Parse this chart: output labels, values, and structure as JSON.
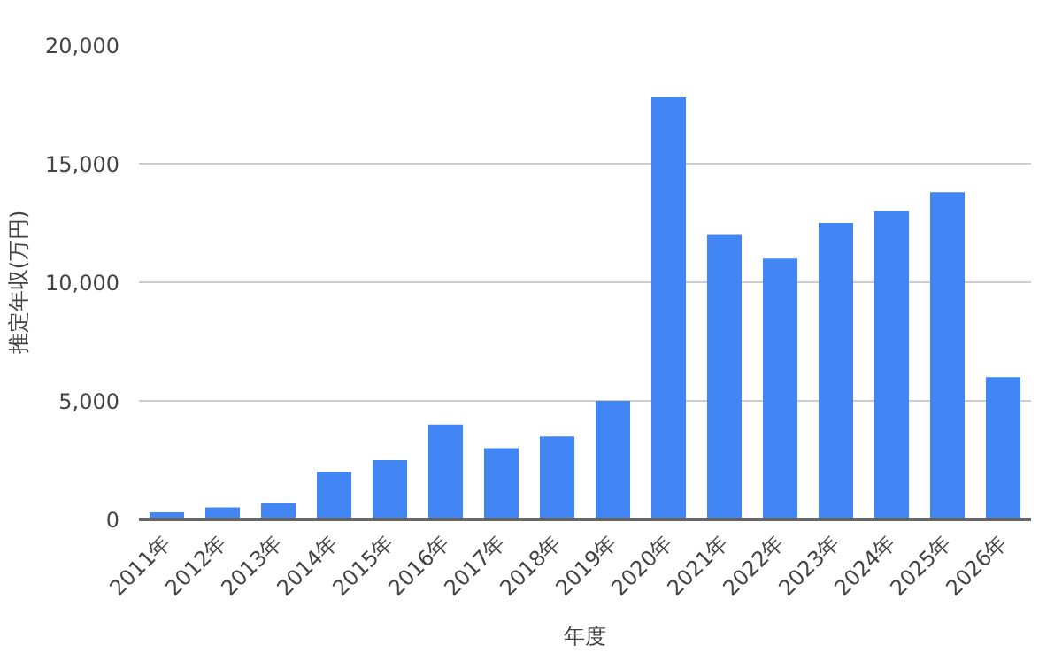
{
  "chart_data": {
    "type": "bar",
    "xlabel": "年度",
    "ylabel": "推定年収(万円)",
    "categories": [
      "2011年",
      "2012年",
      "2013年",
      "2014年",
      "2015年",
      "2016年",
      "2017年",
      "2018年",
      "2019年",
      "2020年",
      "2021年",
      "2022年",
      "2023年",
      "2024年",
      "2025年",
      "2026年"
    ],
    "values": [
      300,
      500,
      700,
      2000,
      2500,
      4000,
      3000,
      3500,
      5000,
      17800,
      12000,
      11000,
      12500,
      13000,
      13800,
      6000
    ],
    "color": "#4285f4",
    "ylim": [
      0,
      20000
    ],
    "yticks": [
      {
        "value": 0,
        "label": "0"
      },
      {
        "value": 5000,
        "label": "5,000"
      },
      {
        "value": 10000,
        "label": "10,000"
      },
      {
        "value": 15000,
        "label": "15,000"
      },
      {
        "value": 20000,
        "label": "20,000"
      }
    ],
    "grid": "y"
  }
}
